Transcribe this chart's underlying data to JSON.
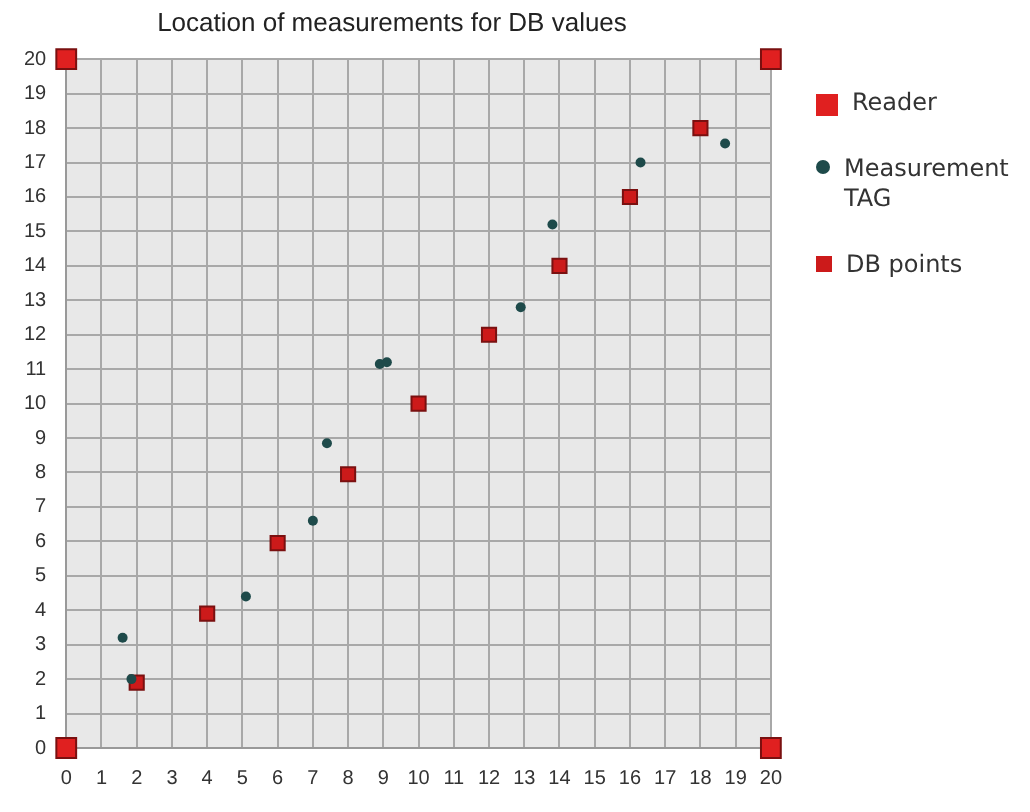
{
  "chart_data": {
    "type": "scatter",
    "title": "Location of measurements for DB values",
    "xlim": [
      0,
      20
    ],
    "ylim": [
      0,
      20
    ],
    "xticks": [
      0,
      1,
      2,
      3,
      4,
      5,
      6,
      7,
      8,
      9,
      10,
      11,
      12,
      13,
      14,
      15,
      16,
      17,
      18,
      19,
      20
    ],
    "yticks": [
      0,
      1,
      2,
      3,
      4,
      5,
      6,
      7,
      8,
      9,
      10,
      11,
      12,
      13,
      14,
      15,
      16,
      17,
      18,
      19,
      20
    ],
    "grid": true,
    "legend": "top right",
    "series": [
      {
        "name": "Reader",
        "color": "#e02020",
        "marker": "square",
        "x": [
          0,
          0,
          20,
          20
        ],
        "values": [
          0,
          20,
          0,
          20
        ]
      },
      {
        "name": "Measurement TAG",
        "color": "#1e4a4a",
        "marker": "circle",
        "x": [
          1.6,
          1.85,
          5.1,
          7.0,
          7.4,
          8.9,
          9.1,
          12.9,
          13.8,
          16.3,
          18.7
        ],
        "values": [
          3.2,
          2.0,
          4.4,
          6.6,
          8.85,
          11.15,
          11.2,
          12.8,
          15.2,
          17.0,
          17.55
        ]
      },
      {
        "name": "DB points",
        "color": "#cc1a1a",
        "marker": "square",
        "x": [
          2,
          4,
          6,
          8,
          10,
          12,
          14,
          16,
          18
        ],
        "values": [
          1.9,
          3.9,
          5.95,
          7.95,
          10,
          12,
          14,
          16,
          18
        ]
      }
    ]
  }
}
